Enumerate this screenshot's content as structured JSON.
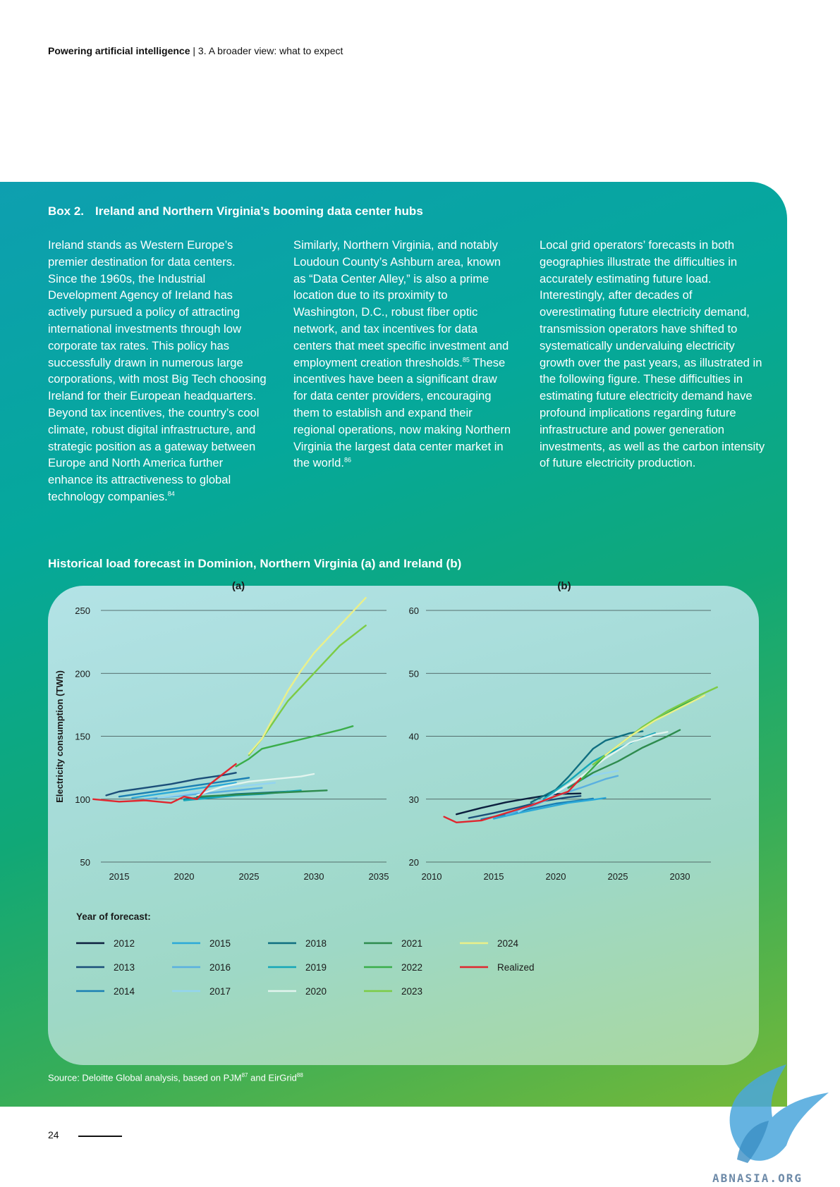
{
  "header": {
    "doc_title": "Powering artificial intelligence",
    "separator": " | ",
    "section": "3. A broader view: what to expect"
  },
  "box": {
    "label": "Box 2.",
    "title": "Ireland and Northern Virginia’s booming data center hubs",
    "col1": "Ireland stands as Western Europe’s premier destination for data centers. Since the 1960s, the Industrial Development Agency of Ireland has actively pursued a policy of attracting international investments through low corporate tax rates. This policy has successfully drawn in numerous large corporations, with most Big Tech choosing Ireland for their European headquarters. Beyond tax incentives, the country’s cool climate, robust digital infrastructure, and strategic position as a gateway between Europe and North America further enhance its attractiveness to global technology companies.",
    "col1_ref": "84",
    "col2a": "Similarly, Northern Virginia, and notably Loudoun County’s Ashburn area, known as “Data Center Alley,” is also a prime location due to its proximity to Washington, D.C., robust fiber optic network, and tax incentives for data centers that meet specific investment and employment creation thresholds.",
    "col2a_ref": "85",
    "col2b": " These incentives have been a significant draw for data center providers, encouraging them to establish and expand their regional operations, now making Northern Virginia the largest data center market in the world.",
    "col2b_ref": "86",
    "col3": "Local grid operators’ forecasts in both geographies illustrate the difficulties in accurately estimating future load. Interestingly, after decades of overestimating future electricity demand, transmission operators have shifted to systematically undervaluing electricity growth over the past years, as illustrated in the following figure. These difficulties in estimating future electricity demand have profound implications regarding future infrastructure and power generation investments, as well as the carbon intensity of future electricity production."
  },
  "chart_title": "Historical load forecast in Dominion, Northern Virginia (a) and Ireland (b)",
  "chart_data": [
    {
      "type": "line",
      "title": "(a)",
      "ylabel": "Electricity consumption (TWh)",
      "xlim": [
        2013.5,
        2035
      ],
      "ylim": [
        50,
        250
      ],
      "xticks": [
        2015,
        2020,
        2025,
        2030,
        2035
      ],
      "yticks": [
        50,
        100,
        150,
        200,
        250
      ],
      "grid": "horizontal",
      "series": [
        {
          "name": "2013",
          "color": "#1b4e79",
          "points": [
            [
              2014,
              103
            ],
            [
              2015,
              106
            ],
            [
              2017,
              109
            ],
            [
              2019,
              112
            ],
            [
              2021,
              116
            ],
            [
              2023,
              119
            ],
            [
              2024,
              121
            ]
          ]
        },
        {
          "name": "2014",
          "color": "#1a7fb3",
          "points": [
            [
              2015,
              102
            ],
            [
              2017,
              105
            ],
            [
              2019,
              108
            ],
            [
              2021,
              111
            ],
            [
              2023,
              114
            ],
            [
              2025,
              117
            ]
          ]
        },
        {
          "name": "2015",
          "color": "#2ba9d8",
          "points": [
            [
              2016,
              101
            ],
            [
              2018,
              104
            ],
            [
              2020,
              107
            ],
            [
              2022,
              110
            ],
            [
              2024,
              113
            ]
          ]
        },
        {
          "name": "2016",
          "color": "#5ab0e0",
          "points": [
            [
              2017,
              100
            ],
            [
              2019,
              102
            ],
            [
              2021,
              104
            ],
            [
              2023,
              106
            ],
            [
              2025,
              108
            ],
            [
              2026,
              109
            ]
          ]
        },
        {
          "name": "2017",
          "color": "#93d4f0",
          "points": [
            [
              2018,
              101
            ],
            [
              2020,
              104
            ],
            [
              2022,
              107
            ],
            [
              2024,
              110
            ],
            [
              2026,
              112
            ],
            [
              2027,
              113
            ]
          ]
        },
        {
          "name": "2018",
          "color": "#0f6e80",
          "points": [
            [
              2020,
              100
            ],
            [
              2022,
              102
            ],
            [
              2024,
              104
            ],
            [
              2026,
              105
            ],
            [
              2028,
              106
            ]
          ]
        },
        {
          "name": "2019",
          "color": "#15a6b8",
          "points": [
            [
              2020,
              99
            ],
            [
              2022,
              101
            ],
            [
              2024,
              103
            ],
            [
              2026,
              104
            ],
            [
              2028,
              106
            ],
            [
              2029,
              107
            ]
          ]
        },
        {
          "name": "2020",
          "color": "#e2f4ee",
          "points": [
            [
              2021,
              103
            ],
            [
              2023,
              110
            ],
            [
              2025,
              114
            ],
            [
              2027,
              116
            ],
            [
              2029,
              118
            ],
            [
              2030,
              120
            ]
          ]
        },
        {
          "name": "2021",
          "color": "#2e8b4e",
          "points": [
            [
              2021,
              102
            ],
            [
              2023,
              103
            ],
            [
              2025,
              104
            ],
            [
              2027,
              105
            ],
            [
              2029,
              106
            ],
            [
              2031,
              107
            ]
          ]
        },
        {
          "name": "2022",
          "color": "#3aad4a",
          "points": [
            [
              2024,
              126
            ],
            [
              2025,
              132
            ],
            [
              2026,
              140
            ],
            [
              2028,
              145
            ],
            [
              2030,
              150
            ],
            [
              2032,
              155
            ],
            [
              2033,
              158
            ]
          ]
        },
        {
          "name": "2023",
          "color": "#7ccb45",
          "points": [
            [
              2025,
              135
            ],
            [
              2026,
              148
            ],
            [
              2027,
              163
            ],
            [
              2028,
              178
            ],
            [
              2030,
              200
            ],
            [
              2032,
              222
            ],
            [
              2034,
              238
            ]
          ]
        },
        {
          "name": "2024",
          "color": "#eaf08a",
          "points": [
            [
              2025,
              136
            ],
            [
              2026,
              148
            ],
            [
              2027,
              167
            ],
            [
              2028,
              186
            ],
            [
              2029,
              202
            ],
            [
              2030,
              216
            ],
            [
              2032,
              238
            ],
            [
              2034,
              260
            ]
          ]
        },
        {
          "name": "Realized",
          "color": "#e0262e",
          "points": [
            [
              2013,
              100
            ],
            [
              2015,
              98
            ],
            [
              2017,
              99
            ],
            [
              2018,
              98
            ],
            [
              2019,
              97
            ],
            [
              2020,
              102
            ],
            [
              2021,
              100
            ],
            [
              2022,
              112
            ],
            [
              2023,
              120
            ],
            [
              2024,
              128
            ]
          ]
        }
      ]
    },
    {
      "type": "line",
      "title": "(b)",
      "xlim": [
        2010,
        2033
      ],
      "ylim": [
        20,
        60
      ],
      "xticks": [
        2010,
        2015,
        2020,
        2025,
        2030
      ],
      "yticks": [
        20,
        30,
        40,
        50,
        60
      ],
      "grid": "horizontal",
      "series": [
        {
          "name": "2012",
          "color": "#0c1f3e",
          "points": [
            [
              2012,
              27.6
            ],
            [
              2014,
              28.6
            ],
            [
              2016,
              29.5
            ],
            [
              2018,
              30.2
            ],
            [
              2020,
              30.8
            ],
            [
              2022,
              30.9
            ]
          ]
        },
        {
          "name": "2013",
          "color": "#1b4e79",
          "points": [
            [
              2013,
              27
            ],
            [
              2015,
              27.8
            ],
            [
              2017,
              28.7
            ],
            [
              2019,
              29.7
            ],
            [
              2021,
              30.3
            ],
            [
              2022,
              30.5
            ]
          ]
        },
        {
          "name": "2014",
          "color": "#1a7fb3",
          "points": [
            [
              2014,
              26.8
            ],
            [
              2016,
              27.6
            ],
            [
              2018,
              28.5
            ],
            [
              2020,
              29.3
            ],
            [
              2022,
              29.8
            ],
            [
              2023,
              30.1
            ]
          ]
        },
        {
          "name": "2015",
          "color": "#2ba9d8",
          "points": [
            [
              2015,
              26.9
            ],
            [
              2017,
              27.8
            ],
            [
              2019,
              28.6
            ],
            [
              2021,
              29.4
            ],
            [
              2023,
              29.9
            ],
            [
              2024,
              30.2
            ]
          ]
        },
        {
          "name": "2016",
          "color": "#5ab0e0",
          "points": [
            [
              2016,
              27.5
            ],
            [
              2018,
              28.8
            ],
            [
              2020,
              30.5
            ],
            [
              2022,
              31.8
            ],
            [
              2024,
              33.2
            ],
            [
              2025,
              33.7
            ]
          ]
        },
        {
          "name": "2017",
          "color": "#93d4f0",
          "points": [
            [
              2017,
              28
            ],
            [
              2019,
              30
            ],
            [
              2021,
              32
            ],
            [
              2023,
              33.8
            ],
            [
              2025,
              34.5
            ]
          ]
        },
        {
          "name": "2018",
          "color": "#0f6e80",
          "points": [
            [
              2018,
              29.5
            ],
            [
              2020,
              31.5
            ],
            [
              2021,
              33.5
            ],
            [
              2023,
              38
            ],
            [
              2024,
              39.3
            ],
            [
              2026,
              40.5
            ],
            [
              2027,
              40.8
            ]
          ]
        },
        {
          "name": "2019",
          "color": "#15a6b8",
          "points": [
            [
              2019,
              30
            ],
            [
              2021,
              32.8
            ],
            [
              2023,
              36
            ],
            [
              2025,
              38
            ],
            [
              2027,
              39.8
            ],
            [
              2028,
              40.5
            ]
          ]
        },
        {
          "name": "2020",
          "color": "#e2f4ee",
          "points": [
            [
              2020,
              31
            ],
            [
              2022,
              33.5
            ],
            [
              2024,
              36.5
            ],
            [
              2026,
              39
            ],
            [
              2028,
              40.3
            ],
            [
              2029,
              40.7
            ]
          ]
        },
        {
          "name": "2021",
          "color": "#2e8b4e",
          "points": [
            [
              2021,
              31.8
            ],
            [
              2023,
              34.2
            ],
            [
              2025,
              36
            ],
            [
              2027,
              38.2
            ],
            [
              2029,
              40
            ],
            [
              2030,
              41
            ]
          ]
        },
        {
          "name": "2022",
          "color": "#3aad4a",
          "points": [
            [
              2022,
              33
            ],
            [
              2024,
              37
            ],
            [
              2026,
              40
            ],
            [
              2028,
              42.5
            ],
            [
              2030,
              44.8
            ],
            [
              2032,
              46.5
            ]
          ]
        },
        {
          "name": "2023",
          "color": "#7ccb45",
          "points": [
            [
              2023,
              35.5
            ],
            [
              2025,
              38.5
            ],
            [
              2027,
              41.5
            ],
            [
              2029,
              44
            ],
            [
              2031,
              46
            ],
            [
              2033,
              47.8
            ]
          ]
        },
        {
          "name": "2024",
          "color": "#eaf08a",
          "points": [
            [
              2024,
              37
            ],
            [
              2026,
              40
            ],
            [
              2028,
              42.5
            ],
            [
              2030,
              44.5
            ],
            [
              2032,
              46.5
            ]
          ]
        },
        {
          "name": "Realized",
          "color": "#e0262e",
          "points": [
            [
              2011,
              27.2
            ],
            [
              2012,
              26.3
            ],
            [
              2014,
              26.6
            ],
            [
              2016,
              27.8
            ],
            [
              2018,
              29
            ],
            [
              2020,
              30.5
            ],
            [
              2021,
              31.2
            ],
            [
              2022,
              33.3
            ]
          ]
        }
      ]
    }
  ],
  "legend": {
    "title": "Year of forecast:",
    "items": [
      {
        "label": "2012",
        "color": "#0c1f3e"
      },
      {
        "label": "2013",
        "color": "#1b4e79"
      },
      {
        "label": "2014",
        "color": "#1a7fb3"
      },
      {
        "label": "2015",
        "color": "#2ba9d8"
      },
      {
        "label": "2016",
        "color": "#5ab0e0"
      },
      {
        "label": "2017",
        "color": "#93d4f0"
      },
      {
        "label": "2018",
        "color": "#0f6e80"
      },
      {
        "label": "2019",
        "color": "#15a6b8"
      },
      {
        "label": "2020",
        "color": "#e2f4ee"
      },
      {
        "label": "2021",
        "color": "#2e8b4e"
      },
      {
        "label": "2022",
        "color": "#3aad4a"
      },
      {
        "label": "2023",
        "color": "#7ccb45"
      },
      {
        "label": "2024",
        "color": "#eaf08a"
      },
      {
        "label": "Realized",
        "color": "#e0262e"
      }
    ]
  },
  "source": {
    "text": "Source: Deloitte Global analysis, based on PJM",
    "ref1": "87",
    "mid": " and EirGrid",
    "ref2": "88"
  },
  "page_number": "24",
  "watermark": "ABNASIA.ORG"
}
